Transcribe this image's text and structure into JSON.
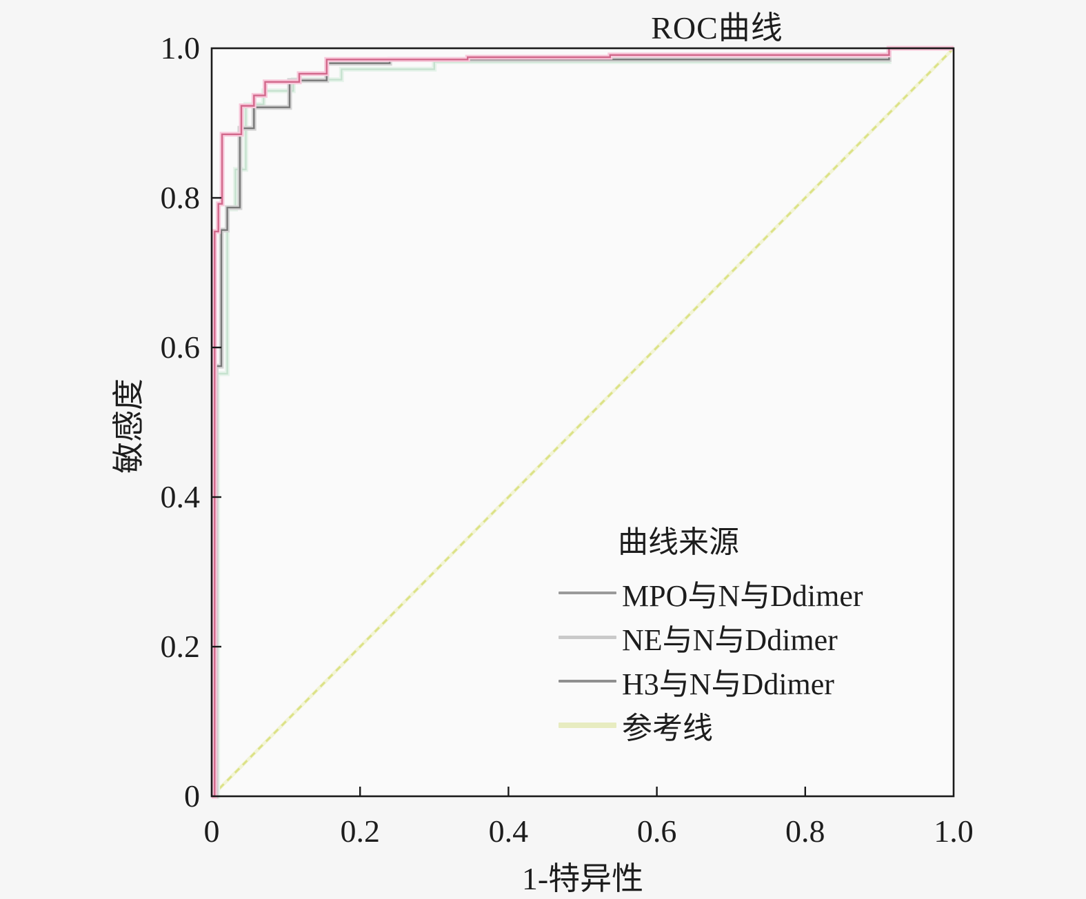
{
  "title": "ROC曲线",
  "axes": {
    "x_label": "1-特异性",
    "y_label": "敏感度",
    "x_ticks": [
      "0",
      "0.2",
      "0.4",
      "0.6",
      "0.8",
      "1.0"
    ],
    "y_ticks": [
      "0",
      "0.2",
      "0.4",
      "0.6",
      "0.8",
      "1.0"
    ]
  },
  "legend": {
    "header": "曲线来源",
    "items": [
      {
        "label": "MPO与N与Ddimer",
        "swatch_color": "#9a9a9a",
        "swatch_height": 4
      },
      {
        "label": "NE与N与Ddimer",
        "swatch_color": "#c9c9c9",
        "swatch_height": 5
      },
      {
        "label": "H3与N与Ddimer",
        "swatch_color": "#8f8f8f",
        "swatch_height": 4
      },
      {
        "label": "参考线",
        "swatch_color": "#e7ecc0",
        "swatch_height": 8
      }
    ]
  },
  "chart_data": {
    "type": "line",
    "subtype": "roc-step-curves",
    "title": "ROC曲线",
    "xlabel": "1-特异性",
    "ylabel": "敏感度",
    "xlim": [
      0,
      1
    ],
    "ylim": [
      0,
      1
    ],
    "grid": false,
    "legend_position": "inside-lower-right",
    "frame_color": "#1a1a1a",
    "plot_bg": "#fafafa",
    "series": [
      {
        "name": "参考线",
        "kind": "reference-diagonal",
        "color": "#dce287",
        "halo": "#f2f4d6",
        "dashed": true,
        "points": [
          [
            0,
            0
          ],
          [
            1,
            1
          ]
        ]
      },
      {
        "name": "NE与N与Ddimer",
        "kind": "roc-curve",
        "color": "#c6e2cf",
        "halo": "#e6f3ea",
        "dashed": false,
        "points": [
          [
            0,
            0
          ],
          [
            0.008,
            0
          ],
          [
            0.008,
            0.565
          ],
          [
            0.021,
            0.565
          ],
          [
            0.021,
            0.785
          ],
          [
            0.032,
            0.785
          ],
          [
            0.032,
            0.838
          ],
          [
            0.046,
            0.838
          ],
          [
            0.046,
            0.925
          ],
          [
            0.07,
            0.925
          ],
          [
            0.07,
            0.943
          ],
          [
            0.11,
            0.943
          ],
          [
            0.11,
            0.958
          ],
          [
            0.175,
            0.958
          ],
          [
            0.175,
            0.972
          ],
          [
            0.3,
            0.972
          ],
          [
            0.3,
            0.982
          ],
          [
            0.913,
            0.982
          ],
          [
            0.913,
            1
          ],
          [
            1,
            1
          ]
        ]
      },
      {
        "name": "H3与N与Ddimer",
        "kind": "roc-curve",
        "color": "#787878",
        "halo": "#d4d4d4",
        "dashed": false,
        "points": [
          [
            0,
            0
          ],
          [
            0.006,
            0
          ],
          [
            0.006,
            0.575
          ],
          [
            0.013,
            0.575
          ],
          [
            0.013,
            0.757
          ],
          [
            0.021,
            0.757
          ],
          [
            0.021,
            0.787
          ],
          [
            0.038,
            0.787
          ],
          [
            0.038,
            0.893
          ],
          [
            0.057,
            0.893
          ],
          [
            0.057,
            0.921
          ],
          [
            0.105,
            0.921
          ],
          [
            0.105,
            0.957
          ],
          [
            0.155,
            0.957
          ],
          [
            0.155,
            0.98
          ],
          [
            0.24,
            0.98
          ],
          [
            0.24,
            0.985
          ],
          [
            0.913,
            0.985
          ],
          [
            0.913,
            1
          ],
          [
            1,
            1
          ]
        ]
      },
      {
        "name": "MPO与N与Ddimer",
        "kind": "roc-curve",
        "color": "#d2688b",
        "halo": "#f8c9db",
        "dashed": false,
        "points": [
          [
            0,
            0
          ],
          [
            0.004,
            0
          ],
          [
            0.004,
            0.755
          ],
          [
            0.009,
            0.755
          ],
          [
            0.009,
            0.792
          ],
          [
            0.014,
            0.792
          ],
          [
            0.014,
            0.885
          ],
          [
            0.04,
            0.885
          ],
          [
            0.04,
            0.923
          ],
          [
            0.057,
            0.923
          ],
          [
            0.057,
            0.937
          ],
          [
            0.072,
            0.937
          ],
          [
            0.072,
            0.955
          ],
          [
            0.118,
            0.955
          ],
          [
            0.118,
            0.966
          ],
          [
            0.155,
            0.966
          ],
          [
            0.155,
            0.985
          ],
          [
            0.345,
            0.985
          ],
          [
            0.345,
            0.988
          ],
          [
            0.537,
            0.988
          ],
          [
            0.537,
            0.991
          ],
          [
            0.913,
            0.991
          ],
          [
            0.913,
            1
          ],
          [
            1,
            1
          ]
        ]
      }
    ]
  }
}
